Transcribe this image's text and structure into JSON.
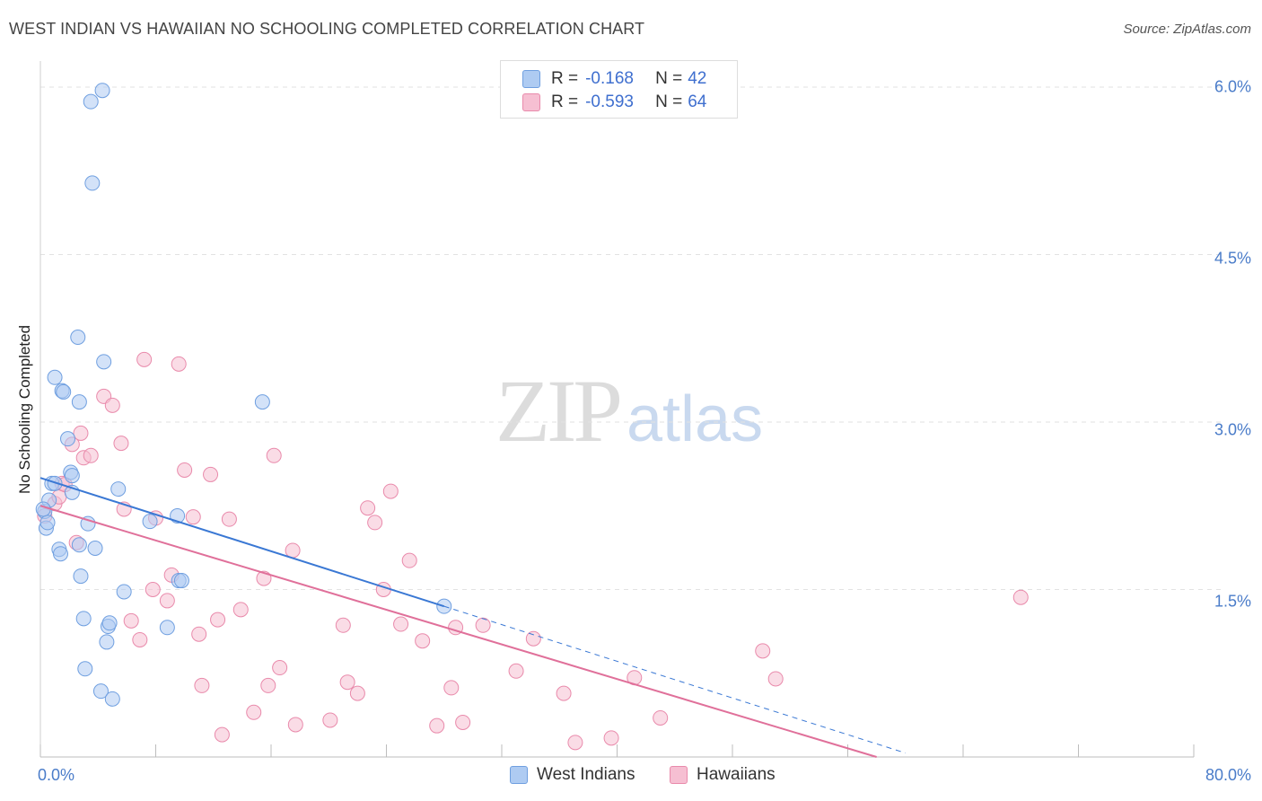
{
  "title": "WEST INDIAN VS HAWAIIAN NO SCHOOLING COMPLETED CORRELATION CHART",
  "source": "Source: ZipAtlas.com",
  "watermark": {
    "zip": "ZIP",
    "atlas": "atlas"
  },
  "legend": {
    "r_label": "R =",
    "n_label": "N =",
    "rows": [
      {
        "r": "-0.168",
        "n": "42"
      },
      {
        "r": "-0.593",
        "n": "64"
      }
    ]
  },
  "bottom_legend": [
    "West Indians",
    "Hawaiians"
  ],
  "chart_data": {
    "type": "scatter",
    "title": "WEST INDIAN VS HAWAIIAN NO SCHOOLING COMPLETED CORRELATION CHART",
    "xlabel": "",
    "ylabel": "No Schooling Completed",
    "xlim": [
      0,
      80
    ],
    "ylim": [
      0,
      6.2
    ],
    "y_ticks": [
      1.5,
      3.0,
      4.5,
      6.0
    ],
    "y_tick_labels": [
      "1.5%",
      "3.0%",
      "4.5%",
      "6.0%"
    ],
    "x_tick_labels": [
      "0.0%",
      "80.0%"
    ],
    "grid": true,
    "colors": {
      "west_indians_fill": "#aecbf2",
      "west_indians_stroke": "#6f9fe0",
      "west_indians_line": "#3a78d4",
      "hawaiians_fill": "#f6bfd2",
      "hawaiians_stroke": "#e98aab",
      "hawaiians_line": "#e0709a"
    },
    "series": [
      {
        "name": "West Indians",
        "r": -0.168,
        "n": 42,
        "trend": {
          "x0": 0,
          "y0": 2.5,
          "x1": 28,
          "y1": 1.35,
          "dash_to_x": 60
        },
        "points": [
          [
            0.3,
            2.2
          ],
          [
            0.4,
            2.05
          ],
          [
            0.5,
            2.1
          ],
          [
            0.6,
            2.3
          ],
          [
            0.8,
            2.45
          ],
          [
            1.0,
            2.45
          ],
          [
            1.0,
            3.4
          ],
          [
            1.5,
            3.28
          ],
          [
            1.6,
            3.27
          ],
          [
            1.9,
            2.85
          ],
          [
            2.2,
            2.37
          ],
          [
            2.1,
            2.55
          ],
          [
            2.2,
            2.52
          ],
          [
            2.6,
            3.76
          ],
          [
            2.7,
            1.9
          ],
          [
            2.7,
            3.18
          ],
          [
            1.3,
            1.86
          ],
          [
            1.4,
            1.82
          ],
          [
            2.8,
            1.62
          ],
          [
            3.0,
            1.24
          ],
          [
            3.1,
            0.79
          ],
          [
            3.3,
            2.09
          ],
          [
            3.8,
            1.87
          ],
          [
            4.2,
            0.59
          ],
          [
            4.4,
            3.54
          ],
          [
            4.6,
            1.03
          ],
          [
            4.7,
            1.17
          ],
          [
            4.8,
            1.2
          ],
          [
            5.0,
            0.52
          ],
          [
            5.4,
            2.4
          ],
          [
            5.8,
            1.48
          ],
          [
            7.6,
            2.11
          ],
          [
            8.8,
            1.16
          ],
          [
            9.5,
            2.16
          ],
          [
            9.6,
            1.58
          ],
          [
            9.8,
            1.58
          ],
          [
            3.5,
            5.87
          ],
          [
            4.3,
            5.97
          ],
          [
            3.6,
            5.14
          ],
          [
            15.4,
            3.18
          ],
          [
            28.0,
            1.35
          ],
          [
            0.2,
            2.22
          ]
        ]
      },
      {
        "name": "Hawaiians",
        "r": -0.593,
        "n": 64,
        "trend": {
          "x0": 0,
          "y0": 2.25,
          "x1": 58,
          "y1": 0.0
        },
        "points": [
          [
            0.3,
            2.16
          ],
          [
            1.0,
            2.27
          ],
          [
            1.3,
            2.33
          ],
          [
            1.5,
            2.45
          ],
          [
            1.7,
            2.44
          ],
          [
            2.2,
            2.8
          ],
          [
            2.5,
            1.92
          ],
          [
            2.8,
            2.9
          ],
          [
            3.0,
            2.68
          ],
          [
            3.5,
            2.7
          ],
          [
            4.4,
            3.23
          ],
          [
            5.0,
            3.15
          ],
          [
            5.6,
            2.81
          ],
          [
            5.8,
            2.22
          ],
          [
            6.3,
            1.22
          ],
          [
            6.9,
            1.05
          ],
          [
            7.2,
            3.56
          ],
          [
            7.8,
            1.5
          ],
          [
            8.0,
            2.14
          ],
          [
            8.8,
            1.4
          ],
          [
            9.1,
            1.63
          ],
          [
            9.6,
            3.52
          ],
          [
            10.0,
            2.57
          ],
          [
            10.6,
            2.15
          ],
          [
            11.0,
            1.1
          ],
          [
            11.2,
            0.64
          ],
          [
            11.8,
            2.53
          ],
          [
            12.3,
            1.23
          ],
          [
            12.6,
            0.2
          ],
          [
            13.1,
            2.13
          ],
          [
            13.9,
            1.32
          ],
          [
            14.8,
            0.4
          ],
          [
            15.5,
            1.6
          ],
          [
            15.8,
            0.64
          ],
          [
            16.2,
            2.7
          ],
          [
            16.6,
            0.8
          ],
          [
            17.5,
            1.85
          ],
          [
            17.7,
            0.29
          ],
          [
            20.1,
            0.33
          ],
          [
            21.0,
            1.18
          ],
          [
            21.3,
            0.67
          ],
          [
            22.0,
            0.57
          ],
          [
            22.7,
            2.23
          ],
          [
            23.2,
            2.1
          ],
          [
            23.8,
            1.5
          ],
          [
            24.3,
            2.38
          ],
          [
            25.0,
            1.19
          ],
          [
            25.6,
            1.76
          ],
          [
            26.5,
            1.04
          ],
          [
            27.5,
            0.28
          ],
          [
            28.5,
            0.62
          ],
          [
            28.8,
            1.16
          ],
          [
            29.3,
            0.31
          ],
          [
            30.7,
            1.18
          ],
          [
            33.0,
            0.77
          ],
          [
            34.2,
            1.06
          ],
          [
            36.3,
            0.57
          ],
          [
            37.1,
            0.13
          ],
          [
            39.6,
            0.17
          ],
          [
            41.2,
            0.71
          ],
          [
            43.0,
            0.35
          ],
          [
            50.1,
            0.95
          ],
          [
            51.0,
            0.7
          ],
          [
            68.0,
            1.43
          ]
        ]
      }
    ]
  }
}
